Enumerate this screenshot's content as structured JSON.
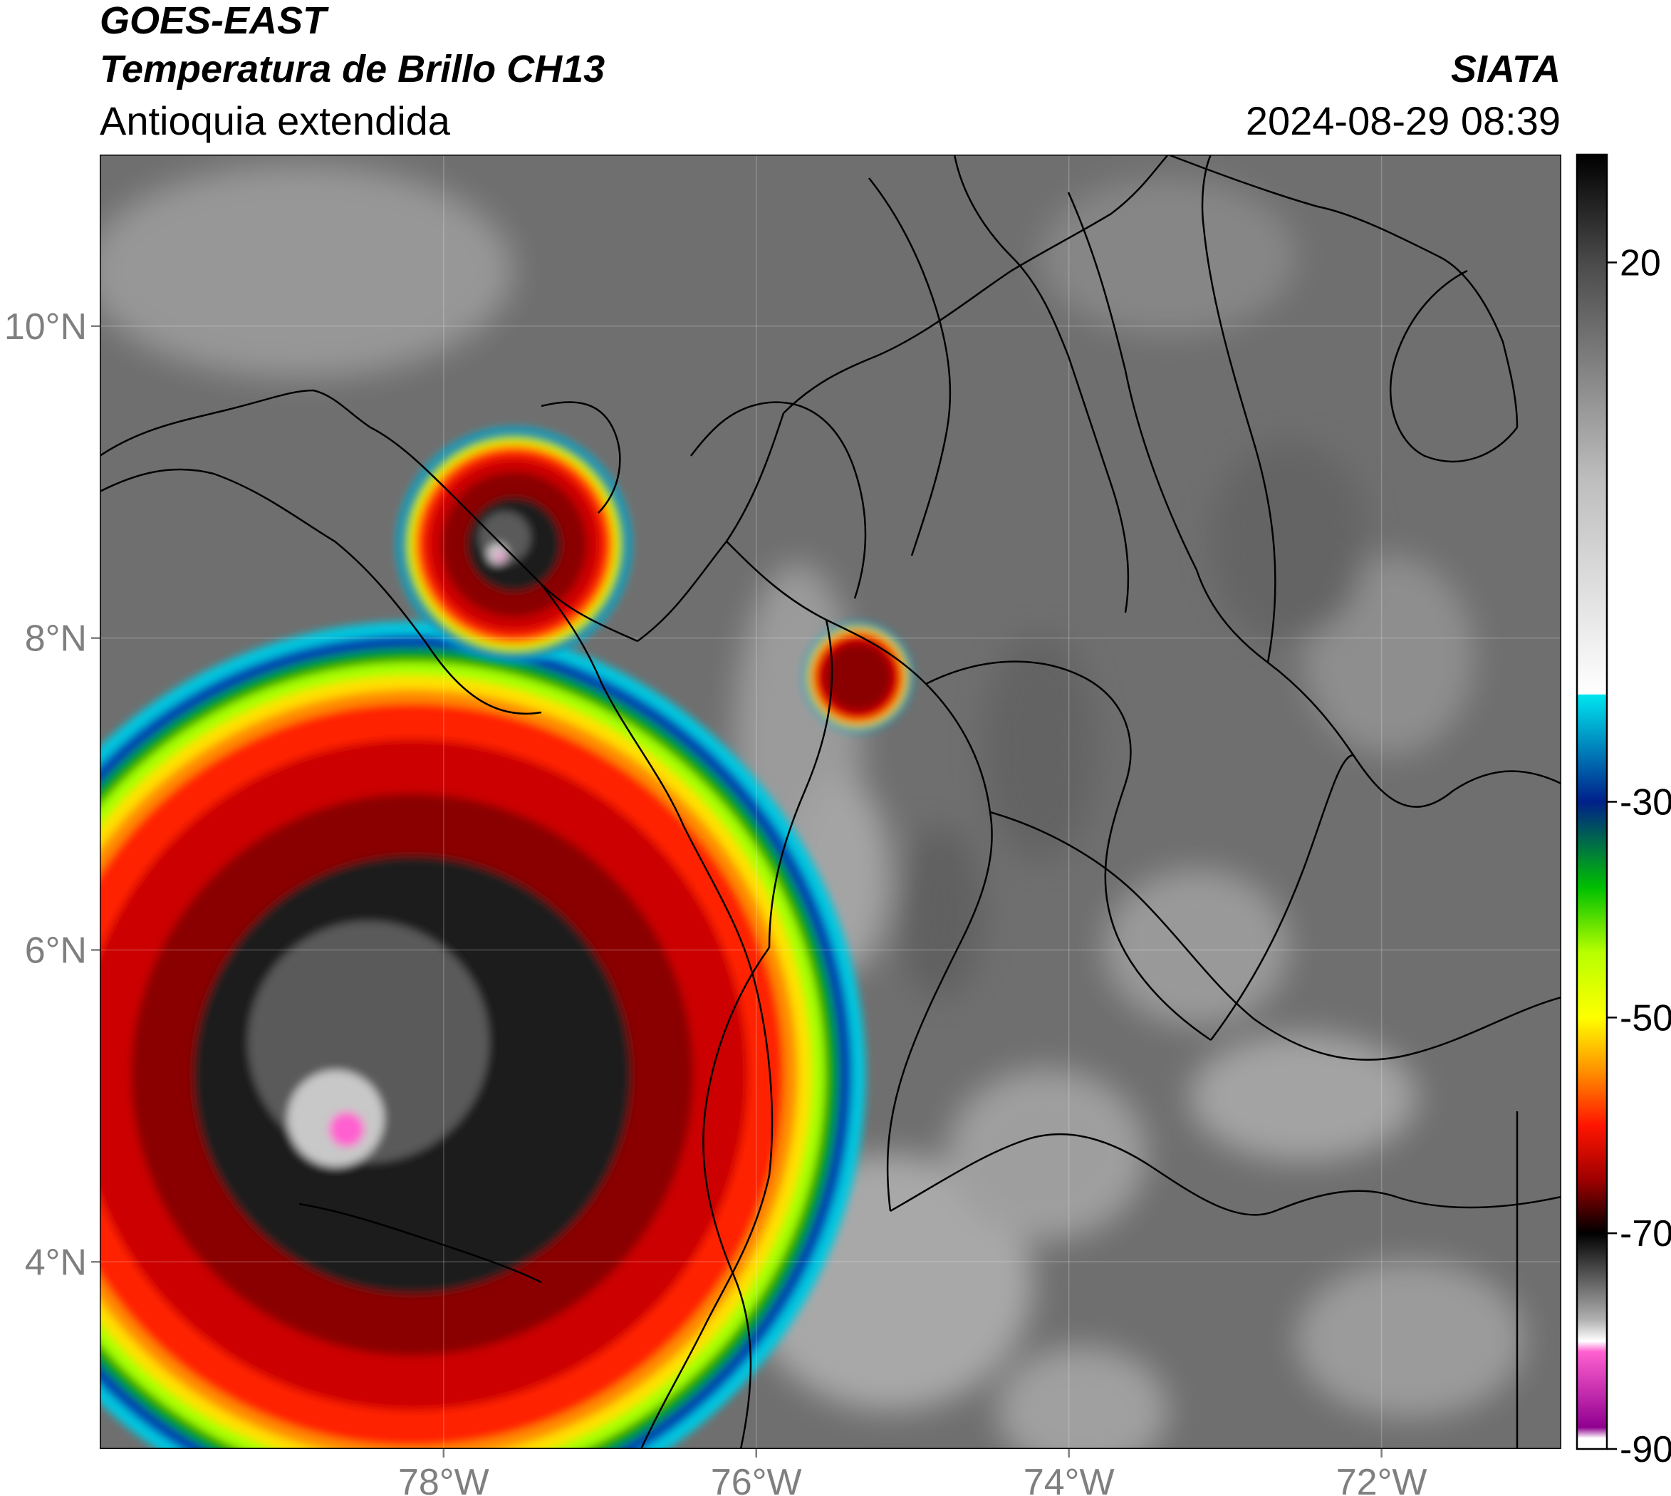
{
  "header": {
    "satellite": "GOES-EAST",
    "product": "Temperatura de Brillo CH13",
    "region": "Antioquia extendida",
    "agency": "SIATA",
    "datetime": "2024-08-29 08:39"
  },
  "map": {
    "lon_range": [
      -80.2,
      -70.85
    ],
    "lat_range": [
      2.8,
      11.1
    ],
    "lon_ticks": [
      {
        "value": -78,
        "label": "78°W"
      },
      {
        "value": -76,
        "label": "76°W"
      },
      {
        "value": -74,
        "label": "74°W"
      },
      {
        "value": -72,
        "label": "72°W"
      }
    ],
    "lat_ticks": [
      {
        "value": 10,
        "label": "10°N"
      },
      {
        "value": 8,
        "label": "8°N"
      },
      {
        "value": 6,
        "label": "6°N"
      },
      {
        "value": 4,
        "label": "4°N"
      }
    ],
    "background_color": "#6f6f6f",
    "border_color": "#000000",
    "storm_cells": [
      {
        "lon": -78.2,
        "lat": 5.2,
        "radius_deg": 2.9,
        "core_radius_deg": 1.4
      },
      {
        "lon": -77.55,
        "lat": 8.6,
        "radius_deg": 0.75,
        "core_radius_deg": 0.3
      },
      {
        "lon": -75.35,
        "lat": 7.75,
        "radius_deg": 0.35,
        "core_radius_deg": 0.0
      }
    ]
  },
  "colorbar": {
    "range": [
      -90,
      30
    ],
    "ticks": [
      {
        "value": 20,
        "label": "20"
      },
      {
        "value": -30,
        "label": "-30"
      },
      {
        "value": -50,
        "label": "-50"
      },
      {
        "value": -70,
        "label": "-70"
      },
      {
        "value": -90,
        "label": "-90"
      }
    ],
    "stops": [
      {
        "value": 30,
        "color": "#000000"
      },
      {
        "value": 20,
        "color": "#4a4a4a"
      },
      {
        "value": 0,
        "color": "#bdbdbd"
      },
      {
        "value": -20,
        "color": "#ffffff"
      },
      {
        "value": -20.1,
        "color": "#00e5ee"
      },
      {
        "value": -30,
        "color": "#00208a"
      },
      {
        "value": -38,
        "color": "#00c000"
      },
      {
        "value": -44,
        "color": "#b8ff00"
      },
      {
        "value": -50,
        "color": "#ffff00"
      },
      {
        "value": -55,
        "color": "#ff9000"
      },
      {
        "value": -60,
        "color": "#ff1500"
      },
      {
        "value": -65,
        "color": "#a00000"
      },
      {
        "value": -70,
        "color": "#000000"
      },
      {
        "value": -78,
        "color": "#b0b0b0"
      },
      {
        "value": -80,
        "color": "#ffffff"
      },
      {
        "value": -81,
        "color": "#ff60d0"
      },
      {
        "value": -88,
        "color": "#900090"
      },
      {
        "value": -89,
        "color": "#ffffff"
      }
    ]
  }
}
